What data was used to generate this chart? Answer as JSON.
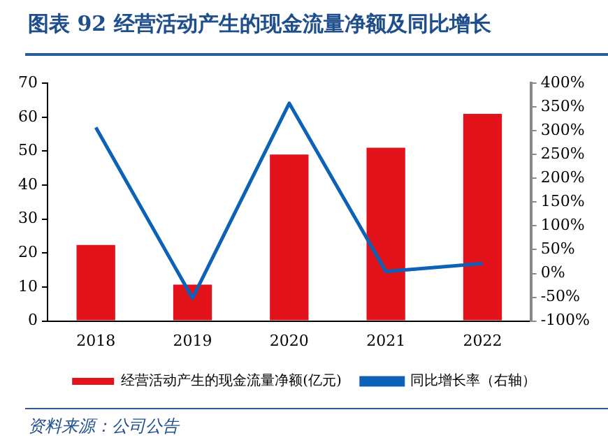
{
  "chart_data": {
    "type": "bar",
    "title": "图表 92 经营活动产生的现金流量净额及同比增长",
    "categories": [
      "2018",
      "2019",
      "2020",
      "2021",
      "2022"
    ],
    "series": [
      {
        "name": "经营活动产生的现金流量净额(亿元)",
        "color": "#e3131b",
        "values": [
          22.4,
          10.7,
          49,
          51,
          61
        ]
      },
      {
        "name": "同比增长率（右轴）",
        "type": "line",
        "axis": "y2",
        "color": "#0d62b7",
        "values": [
          307,
          -52,
          358,
          4,
          21
        ],
        "marker": "none"
      }
    ],
    "ylim": [
      0,
      70
    ],
    "yticks": [
      0,
      10,
      20,
      30,
      40,
      50,
      60,
      70
    ],
    "y2lim": [
      -100,
      400
    ],
    "y2ticks": [
      {
        "value": -100,
        "label": "-100%"
      },
      {
        "value": -50,
        "label": "-50%"
      },
      {
        "value": 0,
        "label": "0%"
      },
      {
        "value": 50,
        "label": "50%"
      },
      {
        "value": 100,
        "label": "100%"
      },
      {
        "value": 150,
        "label": "150%"
      },
      {
        "value": 200,
        "label": "200%"
      },
      {
        "value": 250,
        "label": "250%"
      },
      {
        "value": 300,
        "label": "300%"
      },
      {
        "value": 350,
        "label": "350%"
      },
      {
        "value": 400,
        "label": "400%"
      }
    ],
    "grid": false,
    "legend": "bottom",
    "annotations": [
      "资料来源：公司公告"
    ]
  }
}
